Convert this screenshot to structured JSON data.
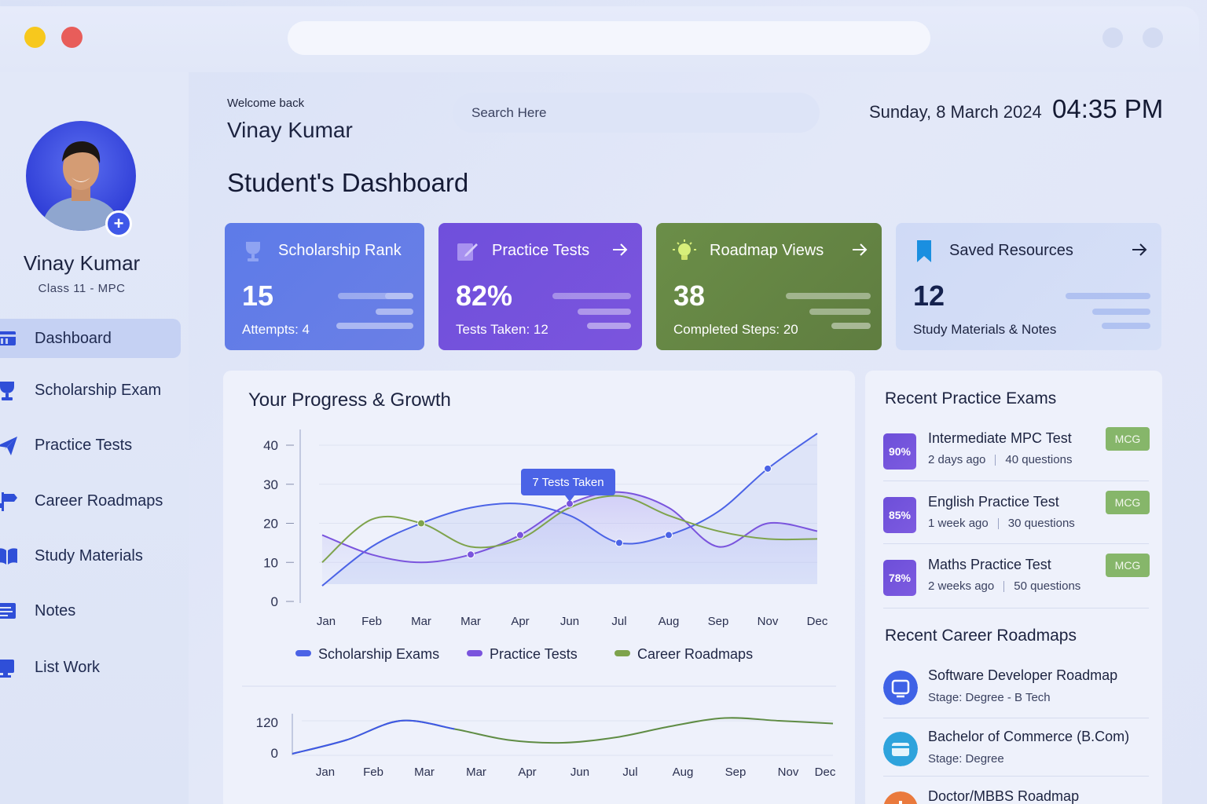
{
  "colors": {
    "accent": "#3f58e8",
    "scholarship": "#4b63e6",
    "practice": "#7a54dd",
    "career": "#7ea34c",
    "mcg_tag": "#86b66a"
  },
  "profile": {
    "name": "Vinay Kumar",
    "class": "Class 11 - MPC"
  },
  "nav": [
    {
      "label": "Dashboard",
      "icon": "dashboard-icon",
      "active": true
    },
    {
      "label": "Scholarship Exam",
      "icon": "trophy-icon",
      "active": false
    },
    {
      "label": "Practice Tests",
      "icon": "paper-plane-icon",
      "active": false
    },
    {
      "label": "Career Roadmaps",
      "icon": "signpost-icon",
      "active": false
    },
    {
      "label": "Study Materials",
      "icon": "open-book-icon",
      "active": false
    },
    {
      "label": "Notes",
      "icon": "notes-icon",
      "active": false
    },
    {
      "label": "List Work",
      "icon": "monitor-icon",
      "active": false
    }
  ],
  "header": {
    "welcome": "Welcome back",
    "user_name": "Vinay Kumar",
    "search_placeholder": "Search Here",
    "date": "Sunday, 8 March 2024",
    "time": "04:35 PM",
    "page_title": "Student's Dashboard"
  },
  "cards": [
    {
      "title": "Scholarship Rank",
      "value": "15",
      "sub": "Attempts: 4",
      "icon": "trophy-icon"
    },
    {
      "title": "Practice Tests",
      "value": "82%",
      "sub": "Tests Taken: 12",
      "icon": "edit-icon"
    },
    {
      "title": "Roadmap Views",
      "value": "38",
      "sub": "Completed Steps: 20",
      "icon": "lightbulb-icon"
    },
    {
      "title": "Saved Resources",
      "value": "12",
      "sub": "Study Materials & Notes",
      "icon": "bookmark-icon"
    }
  ],
  "progress": {
    "title": "Your Progress & Growth"
  },
  "chart_data": [
    {
      "type": "line",
      "x": [
        "Jan",
        "Feb",
        "Mar",
        "Mar",
        "Apr",
        "Jun",
        "Jul",
        "Aug",
        "Sep",
        "Nov",
        "Dec"
      ],
      "yticks": [
        0,
        10,
        20,
        30,
        40
      ],
      "ylim": [
        0,
        40
      ],
      "series": [
        {
          "name": "Scholarship Exams",
          "values": [
            4,
            14,
            20,
            24,
            25,
            22,
            15,
            17,
            23,
            34,
            43
          ]
        },
        {
          "name": "Practice Tests",
          "values": [
            17,
            12,
            10,
            12,
            17,
            25,
            28,
            24,
            14,
            20,
            18
          ]
        },
        {
          "name": "Career Roadmaps",
          "values": [
            10,
            21,
            20,
            14,
            16,
            24,
            27,
            22,
            18,
            16,
            16
          ]
        }
      ],
      "annotation": "7 Tests Taken",
      "legend": "bottom"
    },
    {
      "type": "line",
      "x": [
        "Jan",
        "Feb",
        "Mar",
        "Mar",
        "Apr",
        "Jun",
        "Jul",
        "Aug",
        "Sep",
        "Nov",
        "Dec"
      ],
      "yticks": [
        0,
        120
      ],
      "series": [
        {
          "values": [
            0,
            50,
            120,
            90,
            50,
            40,
            60,
            100,
            130,
            120,
            110
          ]
        }
      ]
    }
  ],
  "recent_exams": {
    "title": "Recent Practice Exams",
    "items": [
      {
        "badge": "90%",
        "title": "Intermediate MPC Test",
        "when": "2 days ago",
        "questions": "40 questions",
        "tag": "MCG"
      },
      {
        "badge": "85%",
        "title": "English Practice Test",
        "when": "1 week ago",
        "questions": "30 questions",
        "tag": "MCG"
      },
      {
        "badge": "78%",
        "title": "Maths Practice Test",
        "when": "2 weeks ago",
        "questions": "50 questions",
        "tag": "MCG"
      }
    ]
  },
  "recent_roadmaps": {
    "title": "Recent Career Roadmaps",
    "items": [
      {
        "title": "Software Developer Roadmap",
        "stage": "Stage: Degree - B Tech",
        "icon": "code-icon"
      },
      {
        "title": "Bachelor of Commerce (B.Com)",
        "stage": "Stage: Degree",
        "icon": "wallet-icon"
      },
      {
        "title": "Doctor/MBBS Roadmap",
        "stage": "",
        "icon": "medical-icon"
      }
    ]
  }
}
